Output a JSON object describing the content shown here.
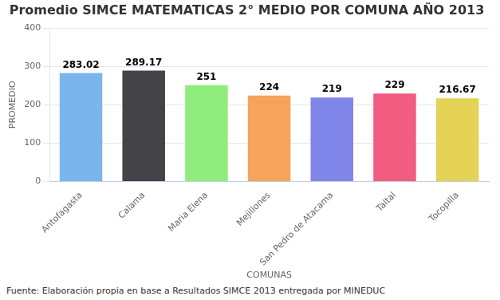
{
  "chart_data": {
    "type": "bar",
    "title": "Promedio SIMCE MATEMATICAS 2° MEDIO POR COMUNA AÑO 2013",
    "x_label": "COMUNAS",
    "y_label": "PROMEDIO",
    "annotations": [
      "Fuente: Elaboración propia en base a Resultados SIMCE 2013 entregada por MINEDUC"
    ],
    "categories": [
      "Antofagasta",
      "Calama",
      "Maria Elena",
      "Mejillones",
      "San Pedro de Atacama",
      "Taltal",
      "Tocopilla"
    ],
    "values": [
      283.02,
      289.17,
      251,
      224,
      219,
      229,
      216.67
    ],
    "colors": [
      "#7cb5ec",
      "#434348",
      "#90ed7d",
      "#f7a35c",
      "#8085e9",
      "#f15c80",
      "#e4d354"
    ],
    "ylim": [
      0,
      400
    ],
    "yticks": [
      0,
      100,
      200,
      300,
      400
    ],
    "grid": true,
    "data_labels": true
  }
}
